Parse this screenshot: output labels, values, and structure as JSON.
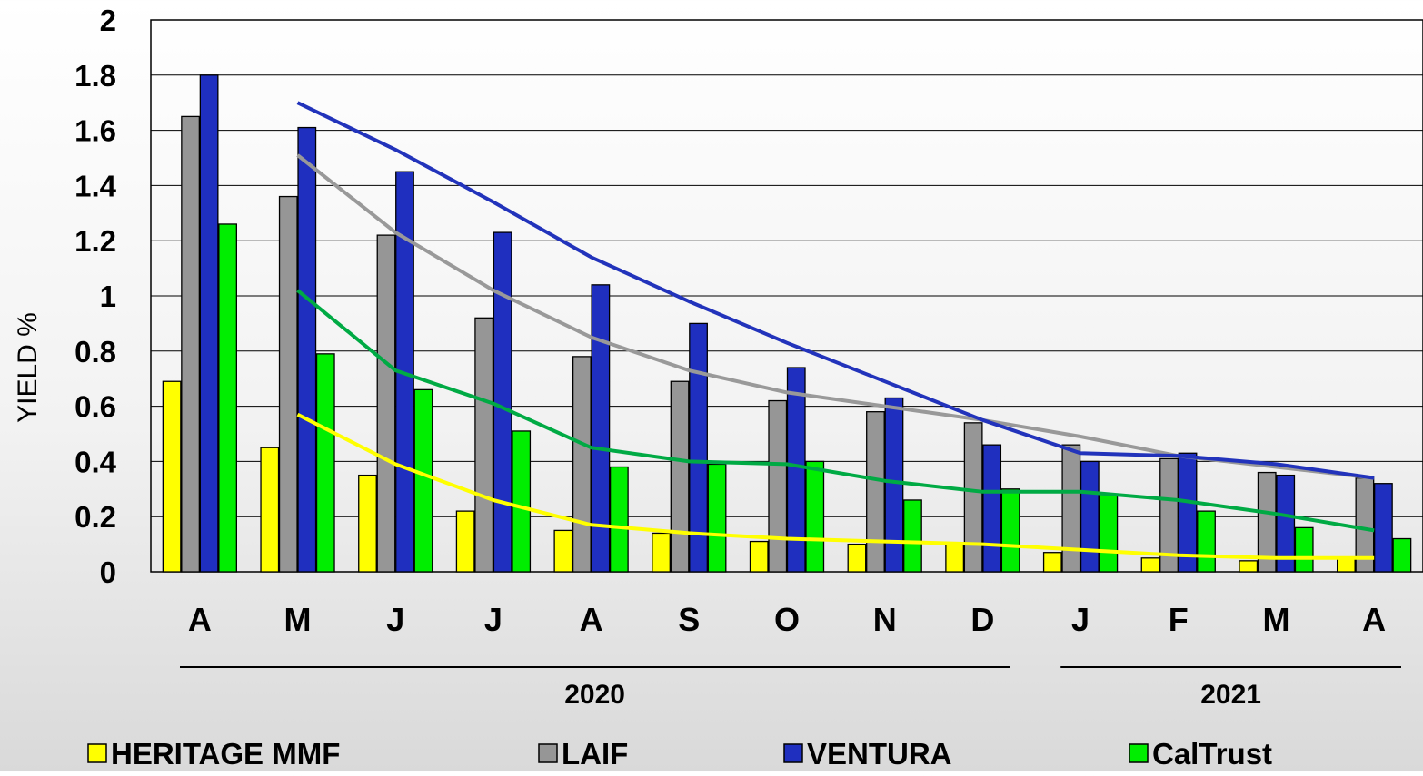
{
  "chart_data": {
    "type": "bar",
    "ylabel": "YIELD %",
    "xlabel": "",
    "ylim": [
      0,
      2
    ],
    "yticks": [
      "0",
      "0.2",
      "0.4",
      "0.6",
      "0.8",
      "1",
      "1.2",
      "1.4",
      "1.6",
      "1.8",
      "2"
    ],
    "categories": [
      "A",
      "M",
      "J",
      "J",
      "A",
      "S",
      "O",
      "N",
      "D",
      "J",
      "F",
      "M",
      "A"
    ],
    "year_groups": [
      {
        "label": "2020",
        "from": 0,
        "to": 8
      },
      {
        "label": "2021",
        "from": 9,
        "to": 12
      }
    ],
    "grid": true,
    "legend_position": "bottom",
    "series": [
      {
        "name": "HERITAGE MMF",
        "color": "#ffff00",
        "trend_color": "#ffff00",
        "values": [
          0.69,
          0.45,
          0.35,
          0.22,
          0.15,
          0.14,
          0.11,
          0.1,
          0.1,
          0.07,
          0.05,
          0.04,
          0.05
        ],
        "trend": [
          null,
          0.57,
          0.39,
          0.26,
          0.17,
          0.14,
          0.12,
          0.11,
          0.1,
          0.08,
          0.06,
          0.05,
          0.05
        ]
      },
      {
        "name": "LAIF",
        "color": "#969696",
        "trend_color": "#999999",
        "values": [
          1.65,
          1.36,
          1.22,
          0.92,
          0.78,
          0.69,
          0.62,
          0.58,
          0.54,
          0.46,
          0.41,
          0.36,
          0.34
        ],
        "trend": [
          null,
          1.51,
          1.23,
          1.02,
          0.85,
          0.73,
          0.65,
          0.6,
          0.55,
          0.49,
          0.42,
          0.38,
          0.34
        ]
      },
      {
        "name": "VENTURA",
        "color": "#1f2fbf",
        "trend_color": "#2233bb",
        "values": [
          1.8,
          1.61,
          1.45,
          1.23,
          1.04,
          0.9,
          0.74,
          0.63,
          0.46,
          0.4,
          0.43,
          0.35,
          0.32
        ],
        "trend": [
          null,
          1.7,
          1.53,
          1.34,
          1.14,
          0.98,
          0.83,
          0.69,
          0.55,
          0.43,
          0.42,
          0.39,
          0.34
        ]
      },
      {
        "name": "CalTrust",
        "color": "#00ee00",
        "trend_color": "#00aa44",
        "values": [
          1.26,
          0.79,
          0.66,
          0.51,
          0.38,
          0.39,
          0.4,
          0.26,
          0.3,
          0.28,
          0.22,
          0.16,
          0.12
        ],
        "trend": [
          null,
          1.02,
          0.73,
          0.61,
          0.45,
          0.4,
          0.39,
          0.33,
          0.29,
          0.29,
          0.26,
          0.21,
          0.15
        ]
      }
    ]
  }
}
